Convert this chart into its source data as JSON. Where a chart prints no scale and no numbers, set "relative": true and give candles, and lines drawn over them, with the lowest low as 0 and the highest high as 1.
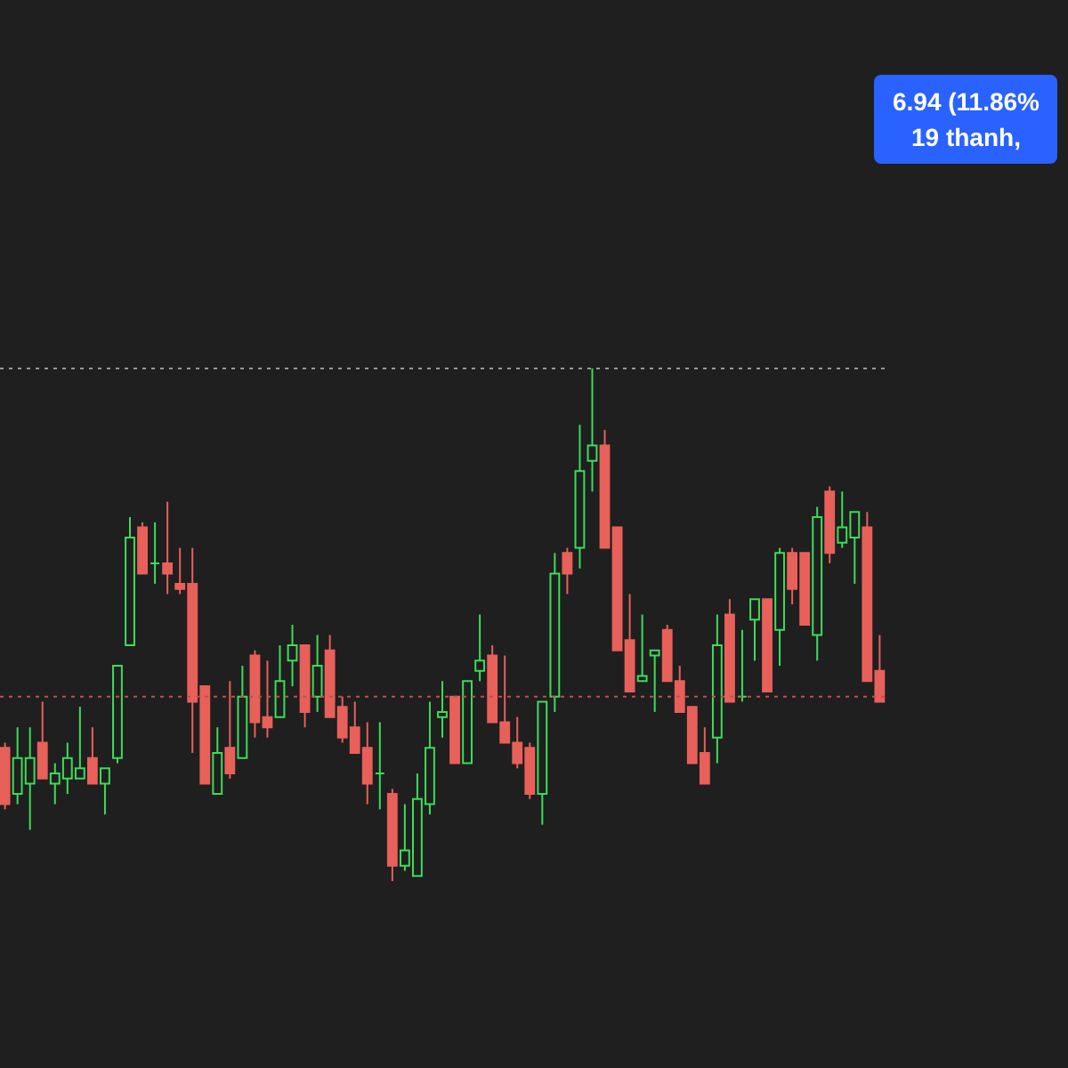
{
  "chart_data": {
    "type": "candlestick",
    "relative": true,
    "categories": [
      null,
      null,
      null,
      null,
      null,
      null,
      null,
      null,
      null,
      null,
      null,
      null,
      null,
      null,
      null,
      null,
      null,
      null,
      null,
      null,
      null,
      null,
      null,
      null,
      null,
      null,
      null,
      null,
      null,
      null,
      null,
      null,
      null,
      null,
      null,
      null,
      null,
      null,
      null,
      null,
      null,
      null,
      null,
      null,
      null,
      null,
      null,
      null,
      null,
      null,
      null,
      null,
      null,
      null,
      null,
      null,
      null,
      null,
      null,
      null,
      null,
      null,
      null,
      null,
      null,
      null,
      null,
      null,
      null,
      null,
      null
    ],
    "ohlc": [
      [
        0.26,
        0.27,
        0.14,
        0.15
      ],
      [
        0.17,
        0.3,
        0.15,
        0.24
      ],
      [
        0.19,
        0.3,
        0.1,
        0.24
      ],
      [
        0.27,
        0.35,
        0.2,
        0.2
      ],
      [
        0.19,
        0.23,
        0.15,
        0.21
      ],
      [
        0.2,
        0.27,
        0.17,
        0.24
      ],
      [
        0.2,
        0.34,
        0.2,
        0.22
      ],
      [
        0.24,
        0.3,
        0.19,
        0.19
      ],
      [
        0.19,
        0.22,
        0.13,
        0.22
      ],
      [
        0.24,
        0.42,
        0.23,
        0.42
      ],
      [
        0.46,
        0.71,
        0.46,
        0.67
      ],
      [
        0.69,
        0.7,
        0.6,
        0.6
      ],
      [
        0.62,
        0.7,
        0.58,
        0.62
      ],
      [
        0.62,
        0.74,
        0.56,
        0.6
      ],
      [
        0.58,
        0.65,
        0.56,
        0.57
      ],
      [
        0.58,
        0.65,
        0.25,
        0.35
      ],
      [
        0.38,
        0.38,
        0.19,
        0.19
      ],
      [
        0.17,
        0.3,
        0.17,
        0.25
      ],
      [
        0.26,
        0.39,
        0.2,
        0.21
      ],
      [
        0.24,
        0.42,
        0.24,
        0.36
      ],
      [
        0.44,
        0.45,
        0.28,
        0.31
      ],
      [
        0.32,
        0.43,
        0.28,
        0.3
      ],
      [
        0.32,
        0.46,
        0.32,
        0.39
      ],
      [
        0.43,
        0.5,
        0.38,
        0.46
      ],
      [
        0.46,
        0.46,
        0.3,
        0.33
      ],
      [
        0.36,
        0.48,
        0.33,
        0.42
      ],
      [
        0.45,
        0.48,
        0.32,
        0.32
      ],
      [
        0.34,
        0.36,
        0.27,
        0.28
      ],
      [
        0.3,
        0.35,
        0.25,
        0.25
      ],
      [
        0.26,
        0.31,
        0.15,
        0.19
      ],
      [
        0.21,
        0.31,
        0.14,
        0.21
      ],
      [
        0.17,
        0.18,
        0,
        0.03
      ],
      [
        0.03,
        0.15,
        0.02,
        0.06
      ],
      [
        0.01,
        0.21,
        0.01,
        0.16
      ],
      [
        0.15,
        0.35,
        0.13,
        0.26
      ],
      [
        0.32,
        0.39,
        0.28,
        0.33
      ],
      [
        0.36,
        0.36,
        0.23,
        0.23
      ],
      [
        0.23,
        0.39,
        0.23,
        0.39
      ],
      [
        0.41,
        0.52,
        0.39,
        0.43
      ],
      [
        0.44,
        0.46,
        0.31,
        0.31
      ],
      [
        0.31,
        0.44,
        0.27,
        0.27
      ],
      [
        0.27,
        0.32,
        0.22,
        0.23
      ],
      [
        0.26,
        0.27,
        0.16,
        0.17
      ],
      [
        0.17,
        0.35,
        0.11,
        0.35
      ],
      [
        0.36,
        0.64,
        0.33,
        0.6
      ],
      [
        0.64,
        0.65,
        0.56,
        0.6
      ],
      [
        0.65,
        0.89,
        0.61,
        0.8
      ],
      [
        0.82,
        1,
        0.76,
        0.85
      ],
      [
        0.85,
        0.88,
        0.65,
        0.65
      ],
      [
        0.69,
        0.69,
        0.45,
        0.45
      ],
      [
        0.47,
        0.56,
        0.37,
        0.37
      ],
      [
        0.39,
        0.52,
        0.39,
        0.4
      ],
      [
        0.44,
        0.45,
        0.33,
        0.45
      ],
      [
        0.49,
        0.5,
        0.39,
        0.39
      ],
      [
        0.39,
        0.42,
        0.33,
        0.33
      ],
      [
        0.34,
        0.34,
        0.23,
        0.23
      ],
      [
        0.25,
        0.3,
        0.19,
        0.19
      ],
      [
        0.28,
        0.52,
        0.23,
        0.46
      ],
      [
        0.52,
        0.55,
        0.35,
        0.35
      ],
      [
        0.36,
        0.49,
        0.35,
        0.36
      ],
      [
        0.51,
        0.55,
        0.43,
        0.55
      ],
      [
        0.55,
        0.55,
        0.37,
        0.37
      ],
      [
        0.49,
        0.65,
        0.42,
        0.64
      ],
      [
        0.64,
        0.65,
        0.54,
        0.57
      ],
      [
        0.64,
        0.64,
        0.5,
        0.5
      ],
      [
        0.48,
        0.73,
        0.43,
        0.71
      ],
      [
        0.76,
        0.77,
        0.62,
        0.64
      ],
      [
        0.66,
        0.76,
        0.65,
        0.69
      ],
      [
        0.67,
        0.72,
        0.58,
        0.72
      ],
      [
        0.69,
        0.72,
        0.39,
        0.39
      ],
      [
        0.41,
        0.48,
        0.35,
        0.35
      ]
    ],
    "ref_lines": [
      {
        "axis": "y",
        "value": 1,
        "color": "#9a9a9a",
        "line_style": "dotted"
      },
      {
        "axis": "y",
        "value": 0.36,
        "color": "#c0504d",
        "line_style": "dotted"
      }
    ],
    "annotations": [
      "6.94 (11.86%",
      "19 thanh,"
    ]
  }
}
